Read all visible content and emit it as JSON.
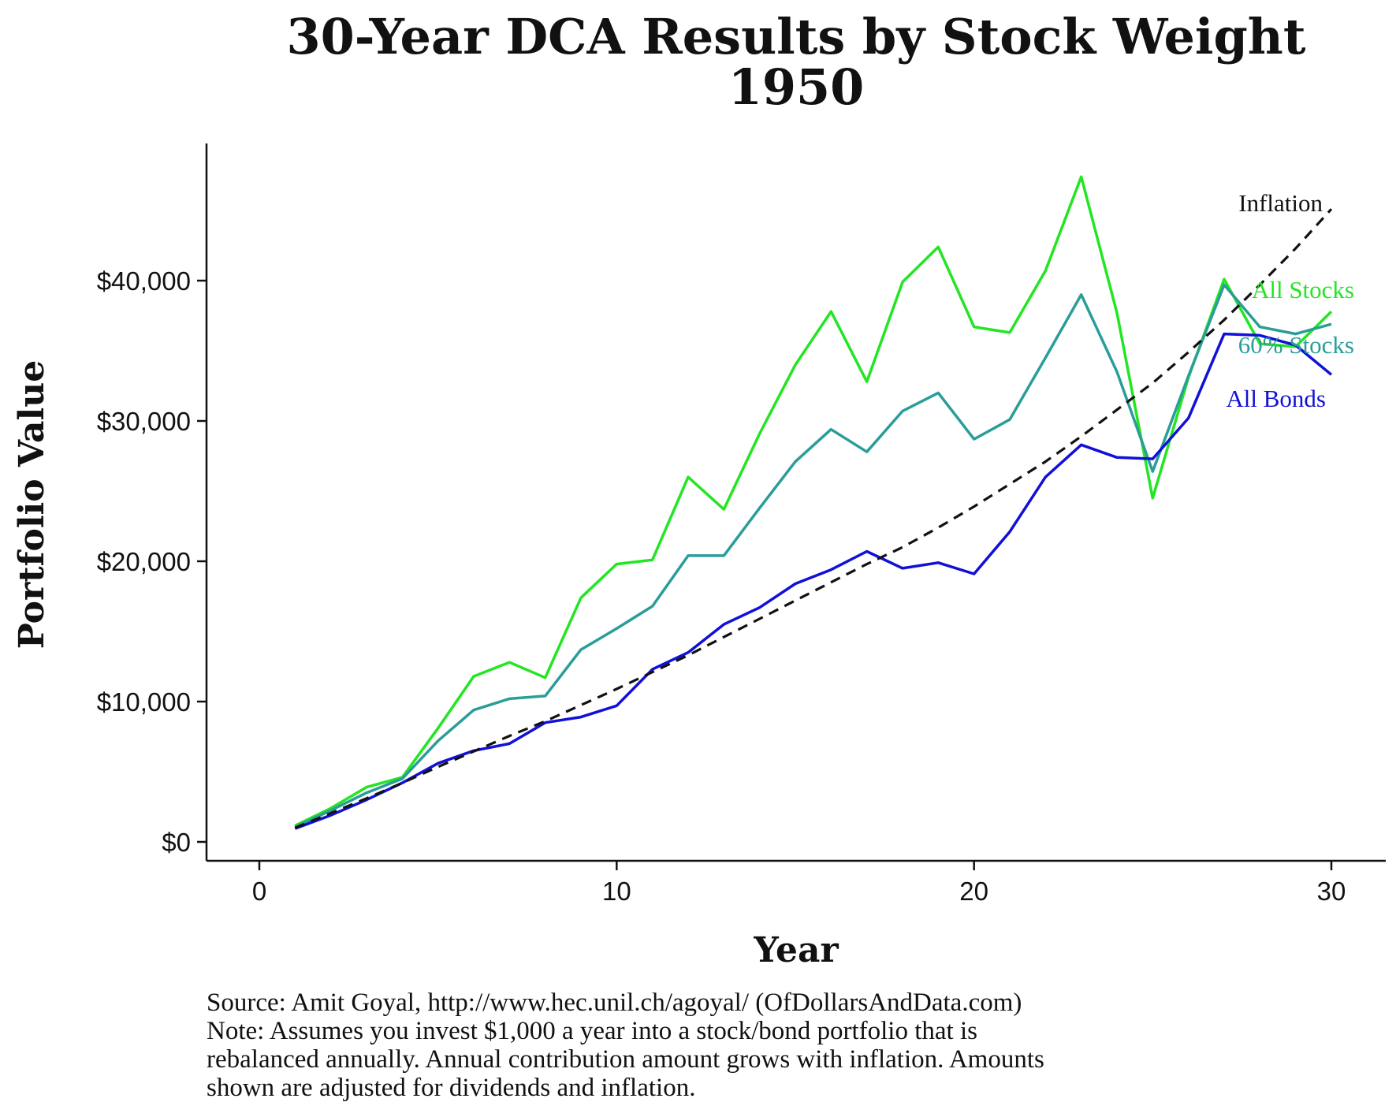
{
  "chart_data": {
    "type": "line",
    "title": "30-Year DCA Results by Stock Weight",
    "subtitle": "1950",
    "xlabel": "Year",
    "ylabel": "Portfolio Value",
    "xlim": [
      0,
      30
    ],
    "ylim": [
      0,
      48000
    ],
    "x_ticks": [
      0,
      10,
      20,
      30
    ],
    "y_ticks": [
      0,
      10000,
      20000,
      30000,
      40000
    ],
    "y_tick_labels": [
      "$0",
      "$10,000",
      "$20,000",
      "$30,000",
      "$40,000"
    ],
    "grid": false,
    "legend": "direct labels at line ends",
    "x": [
      1,
      2,
      3,
      4,
      5,
      6,
      7,
      8,
      9,
      10,
      11,
      12,
      13,
      14,
      15,
      16,
      17,
      18,
      19,
      20,
      21,
      22,
      23,
      24,
      25,
      26,
      27,
      28,
      29,
      30
    ],
    "series": [
      {
        "name": "All Stocks",
        "color": "#22e622",
        "style": "solid",
        "values": [
          1150,
          2400,
          3900,
          4600,
          8100,
          11800,
          12800,
          11700,
          17400,
          19800,
          20100,
          26000,
          23700,
          29100,
          34000,
          37800,
          32800,
          39900,
          42400,
          36700,
          36300,
          40700,
          47400,
          37700,
          24500,
          33100,
          40100,
          35500,
          35300,
          37800
        ]
      },
      {
        "name": "60% Stocks",
        "color": "#2a9d99",
        "style": "solid",
        "values": [
          1050,
          2250,
          3500,
          4500,
          7200,
          9400,
          10200,
          10400,
          13700,
          15200,
          16800,
          20400,
          20400,
          23800,
          27100,
          29400,
          27800,
          30700,
          32000,
          28700,
          30100,
          34500,
          39000,
          33500,
          26400,
          33200,
          39700,
          36700,
          36200,
          36900
        ]
      },
      {
        "name": "All Bonds",
        "color": "#1010d8",
        "style": "solid",
        "values": [
          950,
          1900,
          3000,
          4200,
          5600,
          6500,
          7000,
          8500,
          8900,
          9700,
          12300,
          13500,
          15500,
          16700,
          18400,
          19400,
          20700,
          19500,
          19900,
          19100,
          22100,
          26000,
          28300,
          27400,
          27300,
          30200,
          36200,
          36100,
          35400,
          33300
        ]
      },
      {
        "name": "Inflation",
        "color": "#111111",
        "style": "dashed",
        "values": [
          1000,
          2050,
          3100,
          4200,
          5350,
          6450,
          7550,
          8600,
          9750,
          10900,
          12100,
          13300,
          14600,
          15900,
          17200,
          18500,
          19800,
          21000,
          22400,
          23900,
          25500,
          27100,
          28900,
          30800,
          32700,
          34900,
          37200,
          39700,
          42300,
          45100
        ]
      }
    ]
  },
  "source_note": "Source: Amit Goyal, http://www.hec.unil.ch/agoyal/ (OfDollarsAndData.com)",
  "note_lines": [
    "Note: Assumes you invest $1,000 a year into a stock/bond portfolio that is",
    "rebalanced annually. Annual contribution amount grows with inflation. Amounts",
    "shown are adjusted for dividends and inflation."
  ]
}
